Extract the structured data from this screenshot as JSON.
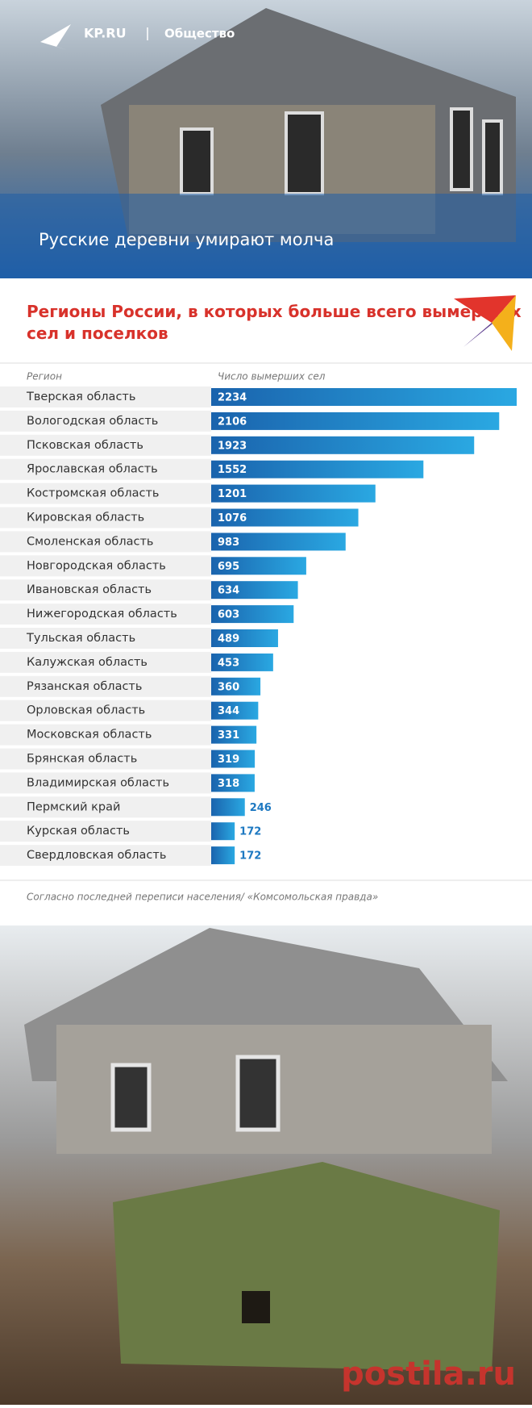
{
  "header": {
    "brand": "KP.RU",
    "section": "Общество",
    "headline": "Русские деревни умирают молча"
  },
  "chart_data": {
    "type": "bar",
    "orientation": "horizontal",
    "title": "Регионы России, в которых больше всего вымерших сел и поселков",
    "category_header": "Регион",
    "value_header": "Число вымерших сел",
    "categories": [
      "Тверская область",
      "Вологодская область",
      "Псковская область",
      "Ярославская область",
      "Костромская область",
      "Кировская область",
      "Смоленская область",
      "Новгородская область",
      "Ивановская область",
      "Нижегородская область",
      "Тульская область",
      "Калужская область",
      "Рязанская область",
      "Орловская область",
      "Московская область",
      "Брянская область",
      "Владимирская область",
      "Пермский край",
      "Курская область",
      "Свердловская область"
    ],
    "values": [
      2234,
      2106,
      1923,
      1552,
      1201,
      1076,
      983,
      695,
      634,
      603,
      489,
      453,
      360,
      344,
      331,
      319,
      318,
      246,
      172,
      172
    ],
    "color": "#1d78c1"
  },
  "footnote": "Согласно последней переписи населения/ «Комсомольская правда»",
  "watermark": "postila.ru"
}
